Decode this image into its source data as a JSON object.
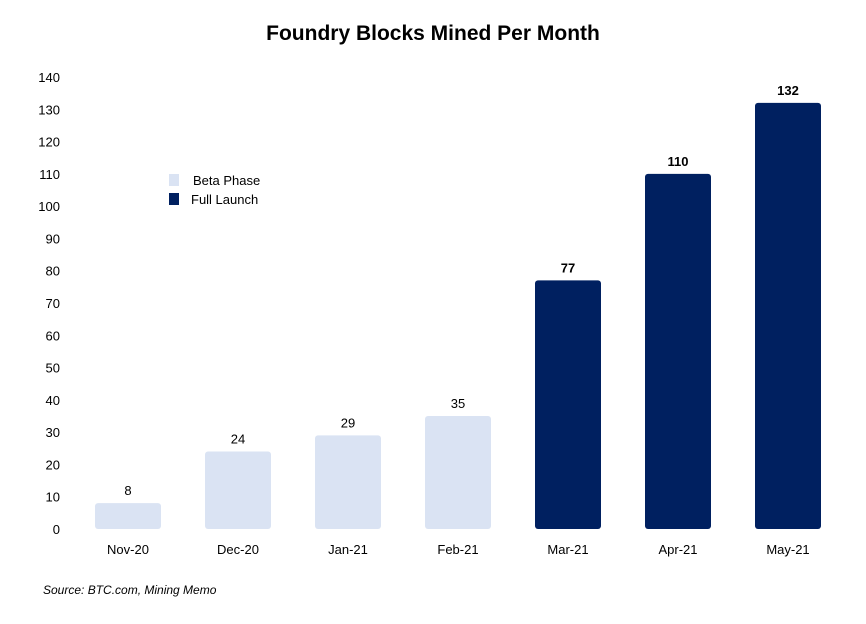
{
  "chart_data": {
    "type": "bar",
    "title": "Foundry Blocks Mined Per Month",
    "categories": [
      "Nov-20",
      "Dec-20",
      "Jan-21",
      "Feb-21",
      "Mar-21",
      "Apr-21",
      "May-21"
    ],
    "values": [
      8,
      24,
      29,
      35,
      77,
      110,
      132
    ],
    "phases": [
      "Beta Phase",
      "Beta Phase",
      "Beta Phase",
      "Beta Phase",
      "Full Launch",
      "Full Launch",
      "Full Launch"
    ],
    "series": [
      {
        "name": "Beta Phase",
        "color": "#dae3f3"
      },
      {
        "name": "Full Launch",
        "color": "#002060"
      }
    ],
    "ylim": [
      0,
      140
    ],
    "yticks": [
      0,
      10,
      20,
      30,
      40,
      50,
      60,
      70,
      80,
      90,
      100,
      110,
      120,
      130,
      140
    ],
    "grid": false,
    "legend_position": "upper-left",
    "xlabel": "",
    "ylabel": ""
  },
  "source": "Source: BTC.com, Mining Memo"
}
